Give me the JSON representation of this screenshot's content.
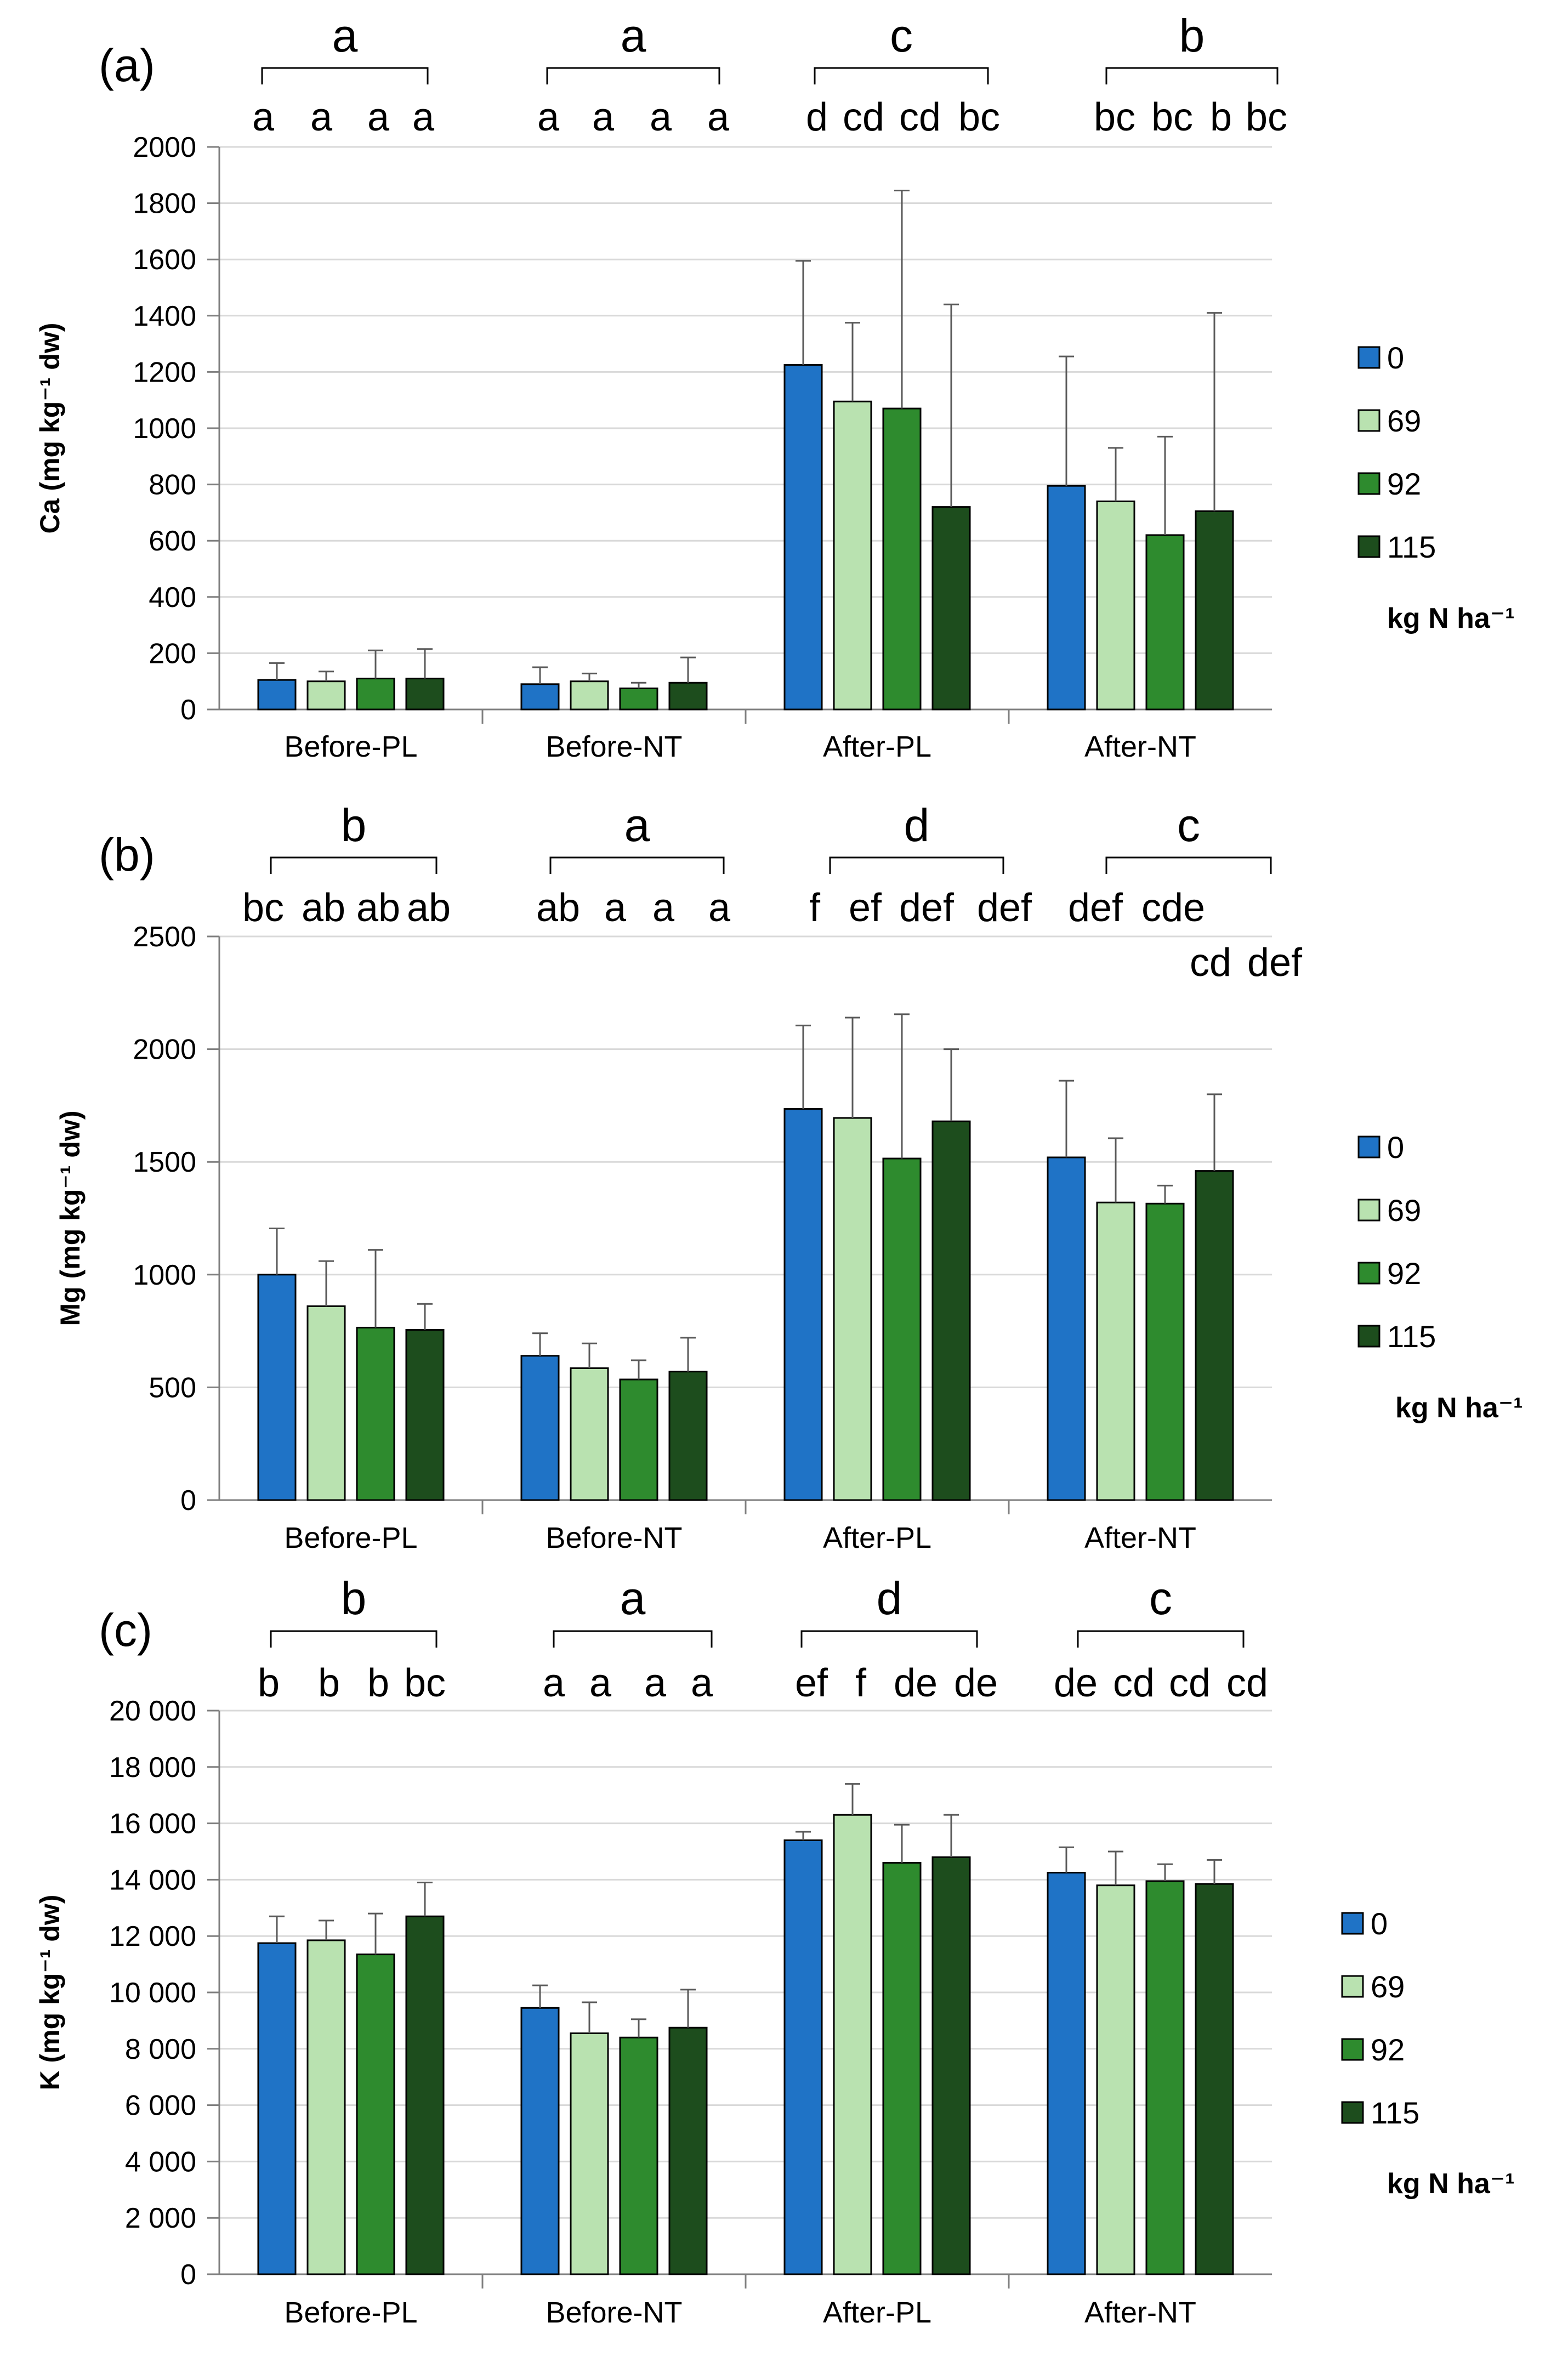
{
  "chart_data": [
    {
      "type": "bar",
      "panel_label": "(a)",
      "ylabel": "Ca (mg kg⁻¹ dw)",
      "ylim": [
        0,
        2000
      ],
      "yticks": [
        "0",
        "200",
        "400",
        "600",
        "800",
        "1000",
        "1200",
        "1400",
        "1600",
        "1800",
        "2000"
      ],
      "yticks_values": [
        0,
        200,
        400,
        600,
        800,
        1000,
        1200,
        1400,
        1600,
        1800,
        2000
      ],
      "categories": [
        "Before-PL",
        "Before-NT",
        "After-PL",
        "After-NT"
      ],
      "series": [
        {
          "name": "0",
          "color": "#1f73c6",
          "values": [
            105,
            90,
            1225,
            795
          ],
          "errors": [
            60,
            60,
            370,
            460
          ]
        },
        {
          "name": "69",
          "color": "#b9e2b0",
          "values": [
            100,
            100,
            1095,
            740
          ],
          "errors": [
            35,
            28,
            280,
            190
          ]
        },
        {
          "name": "92",
          "color": "#2e8b2e",
          "values": [
            110,
            75,
            1070,
            620
          ],
          "errors": [
            100,
            20,
            775,
            350
          ]
        },
        {
          "name": "115",
          "color": "#1d4d1d",
          "values": [
            110,
            95,
            720,
            705
          ],
          "errors": [
            105,
            90,
            720,
            705
          ]
        }
      ],
      "group_letters": [
        "a",
        "a",
        "c",
        "b"
      ],
      "bar_letters": [
        [
          "a",
          "a",
          "a",
          "a"
        ],
        [
          "a",
          "a",
          "a",
          "a"
        ],
        [
          "d",
          "cd",
          "cd",
          "bc"
        ],
        [
          "bc",
          "bc",
          "b",
          "bc"
        ]
      ],
      "legend_title": "kg N ha⁻¹"
    },
    {
      "type": "bar",
      "panel_label": "(b)",
      "ylabel": "Mg (mg kg⁻¹ dw)",
      "ylim": [
        0,
        2500
      ],
      "yticks": [
        "0",
        "500",
        "1000",
        "1500",
        "2000",
        "2500"
      ],
      "yticks_values": [
        0,
        500,
        1000,
        1500,
        2000,
        2500
      ],
      "categories": [
        "Before-PL",
        "Before-NT",
        "After-PL",
        "After-NT"
      ],
      "series": [
        {
          "name": "0",
          "color": "#1f73c6",
          "values": [
            1000,
            640,
            1735,
            1520
          ],
          "errors": [
            205,
            100,
            370,
            340
          ]
        },
        {
          "name": "69",
          "color": "#b9e2b0",
          "values": [
            860,
            585,
            1695,
            1320
          ],
          "errors": [
            200,
            110,
            445,
            285
          ]
        },
        {
          "name": "92",
          "color": "#2e8b2e",
          "values": [
            765,
            535,
            1515,
            1315
          ],
          "errors": [
            345,
            85,
            640,
            80
          ]
        },
        {
          "name": "115",
          "color": "#1d4d1d",
          "values": [
            755,
            570,
            1680,
            1460
          ],
          "errors": [
            115,
            150,
            320,
            340
          ]
        }
      ],
      "group_letters": [
        "b",
        "a",
        "d",
        "c"
      ],
      "bar_letters": [
        [
          "bc",
          "ab",
          "ab",
          "ab"
        ],
        [
          "ab",
          "a",
          "a",
          "a"
        ],
        [
          "f",
          "ef",
          "def",
          "def"
        ],
        [
          "def",
          "cde",
          "cd",
          "def"
        ]
      ],
      "legend_title": "kg N ha⁻¹"
    },
    {
      "type": "bar",
      "panel_label": "(c)",
      "ylabel": "K (mg kg⁻¹ dw)",
      "ylim": [
        0,
        20000
      ],
      "yticks": [
        "0",
        "2 000",
        "4 000",
        "6 000",
        "8 000",
        "10 000",
        "12 000",
        "14 000",
        "16 000",
        "18 000",
        "20 000"
      ],
      "yticks_values": [
        0,
        2000,
        4000,
        6000,
        8000,
        10000,
        12000,
        14000,
        16000,
        18000,
        20000
      ],
      "categories": [
        "Before-PL",
        "Before-NT",
        "After-PL",
        "After-NT"
      ],
      "series": [
        {
          "name": "0",
          "color": "#1f73c6",
          "values": [
            11750,
            9450,
            15400,
            14250
          ],
          "errors": [
            950,
            800,
            300,
            900
          ]
        },
        {
          "name": "69",
          "color": "#b9e2b0",
          "values": [
            11850,
            8550,
            16300,
            13800
          ],
          "errors": [
            700,
            1100,
            1100,
            1200
          ]
        },
        {
          "name": "92",
          "color": "#2e8b2e",
          "values": [
            11350,
            8400,
            14600,
            13950
          ],
          "errors": [
            1450,
            650,
            1350,
            600
          ]
        },
        {
          "name": "115",
          "color": "#1d4d1d",
          "values": [
            12700,
            8750,
            14800,
            13850
          ],
          "errors": [
            1200,
            1350,
            1500,
            850
          ]
        }
      ],
      "group_letters": [
        "b",
        "a",
        "d",
        "c"
      ],
      "bar_letters": [
        [
          "b",
          "b",
          "b",
          "bc"
        ],
        [
          "a",
          "a",
          "a",
          "a"
        ],
        [
          "ef",
          "f",
          "de",
          "de"
        ],
        [
          "de",
          "cd",
          "cd",
          "cd"
        ]
      ],
      "legend_title": "kg N ha⁻¹"
    }
  ]
}
